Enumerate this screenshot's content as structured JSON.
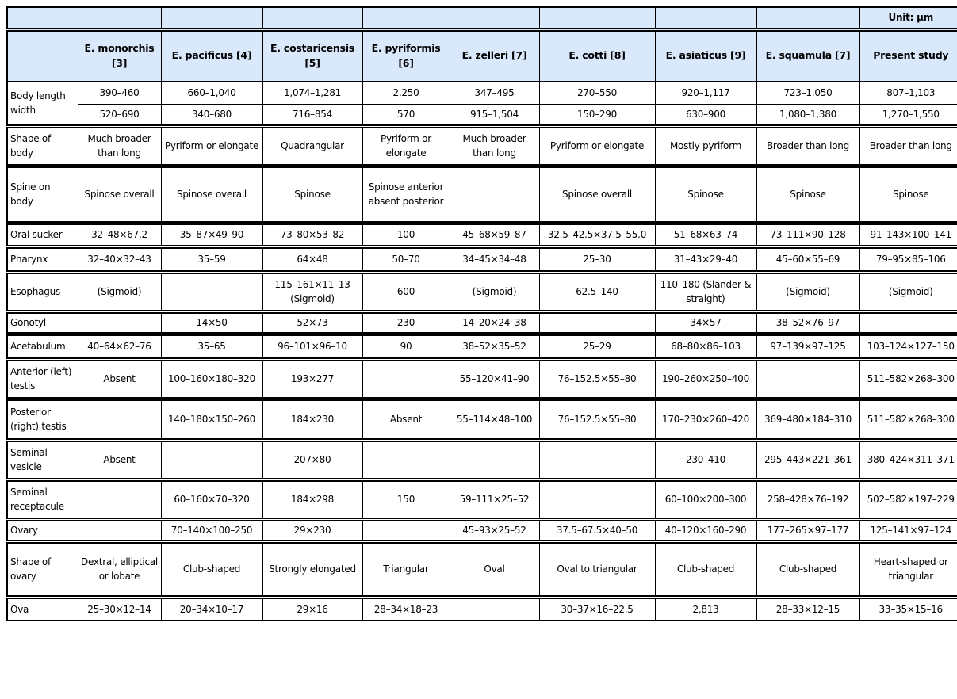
{
  "table": {
    "unit_label": "Unit: μm",
    "header_fill": "#d9e8fb",
    "border_color": "#000000",
    "columns": [
      "",
      "E. monorchis [3]",
      "E. pacificus [4]",
      "E. costaricensis [5]",
      "E. pyriformis [6]",
      "E. zelleri [7]",
      "E. cotti [8]",
      "E. asiaticus [9]",
      "E. squamula [7]",
      "Present study"
    ],
    "rows": [
      {
        "label": "Body length width",
        "subrows": [
          [
            "390–460",
            "660–1,040",
            "1,074–1,281",
            "2,250",
            "347–495",
            "270–550",
            "920–1,117",
            "723–1,050",
            "807–1,103"
          ],
          [
            "520–690",
            "340–680",
            "716–854",
            "570",
            "915–1,504",
            "150–290",
            "630–900",
            "1,080–1,380",
            "1,270–1,550"
          ]
        ]
      },
      {
        "label": "Shape of body",
        "values": [
          "Much broader than long",
          "Pyriform or elongate",
          "Quadrangular",
          "Pyriform or elongate",
          "Much broader than long",
          "Pyriform or elongate",
          "Mostly pyriform",
          "Broader than long",
          "Broader than long"
        ]
      },
      {
        "label": "Spine on body",
        "values": [
          "Spinose overall",
          "Spinose overall",
          "Spinose",
          "Spinose anterior absent posterior",
          "",
          "Spinose overall",
          "Spinose",
          "Spinose",
          "Spinose"
        ]
      },
      {
        "label": "Oral sucker",
        "values": [
          "32–48×67.2",
          "35–87×49–90",
          "73–80×53–82",
          "100",
          "45–68×59–87",
          "32.5–42.5×37.5–55.0",
          "51–68×63–74",
          "73–111×90–128",
          "91–143×100–141"
        ]
      },
      {
        "label": "Pharynx",
        "values": [
          "32–40×32–43",
          "35–59",
          "64×48",
          "50–70",
          "34–45×34–48",
          "25–30",
          "31–43×29–40",
          "45–60×55–69",
          "79–95×85–106"
        ]
      },
      {
        "label": "Esophagus",
        "values": [
          "(Sigmoid)",
          "",
          "115–161×11–13 (Sigmoid)",
          "600",
          "(Sigmoid)",
          "62.5–140",
          "110–180 (Slander & straight)",
          "(Sigmoid)",
          "(Sigmoid)"
        ]
      },
      {
        "label": "Gonotyl",
        "values": [
          "",
          "14×50",
          "52×73",
          "230",
          "14–20×24–38",
          "",
          "34×57",
          "38–52×76–97",
          ""
        ]
      },
      {
        "label": "Acetabulum",
        "values": [
          "40–64×62–76",
          "35–65",
          "96–101×96–10",
          "90",
          "38–52×35–52",
          "25–29",
          "68–80×86–103",
          "97–139×97–125",
          "103–124×127–150"
        ]
      },
      {
        "label": "Anterior (left) testis",
        "values": [
          "Absent",
          "100–160×180–320",
          "193×277",
          "",
          "55–120×41–90",
          "76–152.5×55–80",
          "190–260×250–400",
          "",
          "511–582×268–300"
        ]
      },
      {
        "label": "Posterior (right) testis",
        "values": [
          "",
          "140–180×150–260",
          "184×230",
          "Absent",
          "55–114×48–100",
          "76–152.5×55–80",
          "170–230×260–420",
          "369–480×184–310",
          "511–582×268–300"
        ]
      },
      {
        "label": "Seminal vesicle",
        "values": [
          "Absent",
          "",
          "207×80",
          "",
          "",
          "",
          "230–410",
          "295–443×221–361",
          "380–424×311–371"
        ]
      },
      {
        "label": "Seminal receptacule",
        "values": [
          "",
          "60–160×70–320",
          "184×298",
          "150",
          "59–111×25–52",
          "",
          "60–100×200–300",
          "258–428×76–192",
          "502–582×197–229"
        ]
      },
      {
        "label": "Ovary",
        "values": [
          "",
          "70–140×100–250",
          "29×230",
          "",
          "45–93×25–52",
          "37.5–67.5×40–50",
          "40–120×160–290",
          "177–265×97–177",
          "125–141×97–124"
        ]
      },
      {
        "label": "Shape of ovary",
        "values": [
          "Dextral, elliptical or lobate",
          "Club-shaped",
          "Strongly elongated",
          "Triangular",
          "Oval",
          "Oval to triangular",
          "Club-shaped",
          "Club-shaped",
          "Heart-shaped or triangular"
        ]
      },
      {
        "label": "Ova",
        "values": [
          "25–30×12–14",
          "20–34×10–17",
          "29×16",
          "28–34×18–23",
          "",
          "30–37×16–22.5",
          "2,813",
          "28–33×12–15",
          "33–35×15–16"
        ]
      }
    ]
  }
}
